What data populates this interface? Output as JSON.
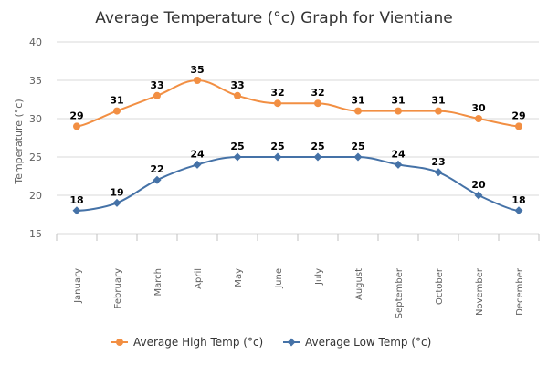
{
  "chart_data": {
    "type": "line",
    "title": "Average Temperature (°c) Graph for Vientiane",
    "ylabel": "Temperature (°c)",
    "xlabel": "",
    "ylim": [
      15,
      40
    ],
    "yticks": [
      15,
      20,
      25,
      30,
      35,
      40
    ],
    "grid": true,
    "legend": "bottom",
    "categories": [
      "January",
      "February",
      "March",
      "April",
      "May",
      "June",
      "July",
      "August",
      "September",
      "October",
      "November",
      "December"
    ],
    "series": [
      {
        "name": "Average High Temp (°c)",
        "color": "#f28f43",
        "marker": "circle",
        "values": [
          29,
          31,
          33,
          35,
          33,
          32,
          32,
          31,
          31,
          31,
          30,
          29
        ]
      },
      {
        "name": "Average Low Temp (°c)",
        "color": "#4572a7",
        "marker": "diamond",
        "values": [
          18,
          19,
          22,
          24,
          25,
          25,
          25,
          25,
          24,
          23,
          20,
          18
        ]
      }
    ]
  }
}
